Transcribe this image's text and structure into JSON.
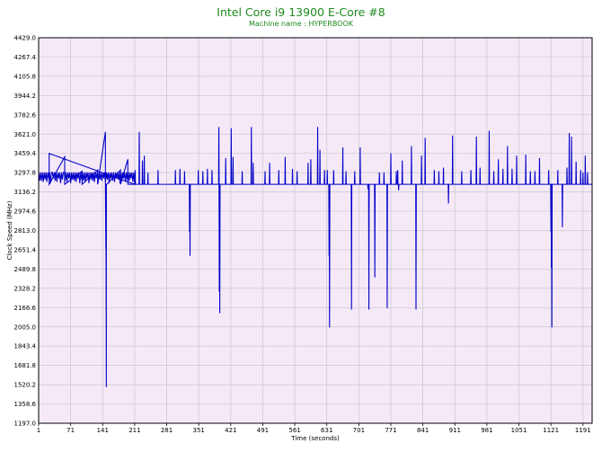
{
  "chart_data": {
    "type": "line",
    "title": "Intel Core i9 13900 E-Core #8",
    "subtitle": "Machine name : HYPERBOOK",
    "xlabel": "Time (seconds)",
    "ylabel": "Clock Speed (MHz)",
    "xlim": [
      1,
      1211
    ],
    "ylim": [
      1197.0,
      4429.0
    ],
    "x_ticks": [
      "1",
      "71",
      "141",
      "211",
      "281",
      "351",
      "421",
      "491",
      "561",
      "631",
      "701",
      "771",
      "841",
      "911",
      "981",
      "1051",
      "1121",
      "1191"
    ],
    "y_ticks": [
      "4429.0",
      "4267.4",
      "4105.8",
      "3944.2",
      "3782.6",
      "3621.0",
      "3459.4",
      "3297.8",
      "3136.2",
      "2974.6",
      "2813.0",
      "2651.4",
      "2489.8",
      "2328.2",
      "2166.6",
      "2005.0",
      "1843.4",
      "1681.8",
      "1520.2",
      "1358.6",
      "1197.0"
    ],
    "grid": true,
    "colors": {
      "line": "#0000c8",
      "plot_bg": "#f5e9f8",
      "grid": "#c8c8c8",
      "title": "#1f8a1f"
    },
    "series": [
      {
        "baseline": 3200,
        "points": [
          [
            1,
            3300
          ],
          [
            3,
            3230
          ],
          [
            5,
            3300
          ],
          [
            7,
            3230
          ],
          [
            9,
            3300
          ],
          [
            11,
            3220
          ],
          [
            13,
            3300
          ],
          [
            15,
            3240
          ],
          [
            17,
            3300
          ],
          [
            19,
            3220
          ],
          [
            21,
            3300
          ],
          [
            23,
            3250
          ],
          [
            25,
            3300
          ],
          [
            27,
            3210
          ],
          [
            29,
            3300
          ],
          [
            31,
            3300
          ],
          [
            33,
            3250
          ],
          [
            35,
            3300
          ],
          [
            37,
            3230
          ],
          [
            39,
            3300
          ],
          [
            41,
            3220
          ],
          [
            43,
            3300
          ],
          [
            45,
            3250
          ],
          [
            47,
            3300
          ],
          [
            49,
            3210
          ],
          [
            51,
            3300
          ],
          [
            53,
            3240
          ],
          [
            55,
            3300
          ],
          [
            57,
            3300
          ],
          [
            59,
            3230
          ],
          [
            61,
            3300
          ],
          [
            63,
            3220
          ],
          [
            65,
            3300
          ],
          [
            67,
            3250
          ],
          [
            69,
            3300
          ],
          [
            71,
            3210
          ],
          [
            73,
            3300
          ],
          [
            75,
            3240
          ],
          [
            77,
            3300
          ],
          [
            79,
            3230
          ],
          [
            81,
            3300
          ],
          [
            83,
            3220
          ],
          [
            85,
            3300
          ],
          [
            87,
            3250
          ],
          [
            89,
            3300
          ],
          [
            91,
            3210
          ],
          [
            93,
            3300
          ],
          [
            95,
            3240
          ],
          [
            97,
            3300
          ],
          [
            99,
            3230
          ],
          [
            101,
            3300
          ],
          [
            103,
            3220
          ],
          [
            105,
            3300
          ],
          [
            107,
            3250
          ],
          [
            109,
            3300
          ],
          [
            111,
            3210
          ],
          [
            113,
            3300
          ],
          [
            115,
            3240
          ],
          [
            117,
            3300
          ],
          [
            119,
            3230
          ],
          [
            121,
            3300
          ],
          [
            123,
            3220
          ],
          [
            125,
            3300
          ],
          [
            127,
            3250
          ],
          [
            129,
            3300
          ],
          [
            131,
            3210
          ],
          [
            133,
            3300
          ],
          [
            135,
            3240
          ],
          [
            137,
            3300
          ],
          [
            139,
            3230
          ],
          [
            141,
            3300
          ],
          [
            143,
            3250
          ],
          [
            145,
            3300
          ],
          [
            147,
            3220
          ],
          [
            149,
            3300
          ],
          [
            151,
            3240
          ],
          [
            153,
            3300
          ],
          [
            155,
            3210
          ],
          [
            157,
            3300
          ],
          [
            159,
            3250
          ],
          [
            161,
            3300
          ],
          [
            163,
            3230
          ],
          [
            165,
            3300
          ],
          [
            167,
            3220
          ],
          [
            169,
            3300
          ],
          [
            171,
            3250
          ],
          [
            173,
            3300
          ],
          [
            175,
            3240
          ],
          [
            177,
            3300
          ],
          [
            179,
            3210
          ],
          [
            181,
            3300
          ],
          [
            183,
            3230
          ],
          [
            185,
            3300
          ],
          [
            187,
            3250
          ],
          [
            189,
            3300
          ],
          [
            191,
            3220
          ],
          [
            193,
            3300
          ],
          [
            195,
            3240
          ],
          [
            197,
            3300
          ],
          [
            199,
            3230
          ],
          [
            201,
            3300
          ],
          [
            203,
            3250
          ],
          [
            205,
            3300
          ],
          [
            207,
            3220
          ],
          [
            209,
            3300
          ],
          [
            211,
            3200
          ]
        ],
        "spikes": [
          [
            24,
            3459
          ],
          [
            58,
            3430
          ],
          [
            96,
            3310
          ],
          [
            130,
            3320
          ],
          [
            147,
            3640
          ],
          [
            148,
            2660
          ],
          [
            149,
            1500
          ],
          [
            150,
            3200
          ],
          [
            180,
            3320
          ],
          [
            196,
            3410
          ],
          [
            212,
            3320
          ],
          [
            221,
            3640
          ],
          [
            228,
            3400
          ],
          [
            232,
            3440
          ],
          [
            240,
            3300
          ],
          [
            262,
            3320
          ],
          [
            300,
            3320
          ],
          [
            310,
            3330
          ],
          [
            320,
            3310
          ],
          [
            331,
            2800
          ],
          [
            332,
            2600
          ],
          [
            350,
            3320
          ],
          [
            360,
            3310
          ],
          [
            370,
            3330
          ],
          [
            380,
            3320
          ],
          [
            395,
            3680
          ],
          [
            396,
            2300
          ],
          [
            397,
            2120
          ],
          [
            410,
            3420
          ],
          [
            422,
            3670
          ],
          [
            426,
            3430
          ],
          [
            446,
            3310
          ],
          [
            466,
            3680
          ],
          [
            470,
            3380
          ],
          [
            496,
            3310
          ],
          [
            506,
            3380
          ],
          [
            526,
            3320
          ],
          [
            540,
            3430
          ],
          [
            556,
            3330
          ],
          [
            566,
            3310
          ],
          [
            590,
            3380
          ],
          [
            596,
            3410
          ],
          [
            611,
            3680
          ],
          [
            616,
            3490
          ],
          [
            626,
            3320
          ],
          [
            632,
            3320
          ],
          [
            636,
            2600
          ],
          [
            637,
            2000
          ],
          [
            646,
            3320
          ],
          [
            666,
            3510
          ],
          [
            673,
            3310
          ],
          [
            685,
            2150
          ],
          [
            692,
            3310
          ],
          [
            704,
            3510
          ],
          [
            721,
            3160
          ],
          [
            723,
            2150
          ],
          [
            736,
            2420
          ],
          [
            746,
            3300
          ],
          [
            756,
            3300
          ],
          [
            763,
            2160
          ],
          [
            771,
            3460
          ],
          [
            783,
            3310
          ],
          [
            786,
            3320
          ],
          [
            788,
            3150
          ],
          [
            796,
            3400
          ],
          [
            816,
            3520
          ],
          [
            826,
            2150
          ],
          [
            838,
            3440
          ],
          [
            846,
            3590
          ],
          [
            866,
            3320
          ],
          [
            876,
            3310
          ],
          [
            886,
            3340
          ],
          [
            897,
            3040
          ],
          [
            906,
            3610
          ],
          [
            926,
            3310
          ],
          [
            946,
            3320
          ],
          [
            958,
            3600
          ],
          [
            966,
            3340
          ],
          [
            986,
            3650
          ],
          [
            996,
            3310
          ],
          [
            1006,
            3410
          ],
          [
            1016,
            3330
          ],
          [
            1026,
            3520
          ],
          [
            1036,
            3330
          ],
          [
            1046,
            3440
          ],
          [
            1066,
            3450
          ],
          [
            1076,
            3310
          ],
          [
            1086,
            3310
          ],
          [
            1096,
            3420
          ],
          [
            1116,
            3320
          ],
          [
            1121,
            2800
          ],
          [
            1122,
            2500
          ],
          [
            1123,
            2000
          ],
          [
            1136,
            3320
          ],
          [
            1146,
            2840
          ],
          [
            1156,
            3340
          ],
          [
            1161,
            3630
          ],
          [
            1166,
            3600
          ],
          [
            1176,
            3390
          ],
          [
            1186,
            3320
          ],
          [
            1191,
            3300
          ],
          [
            1196,
            3440
          ],
          [
            1201,
            3300
          ]
        ]
      }
    ]
  }
}
